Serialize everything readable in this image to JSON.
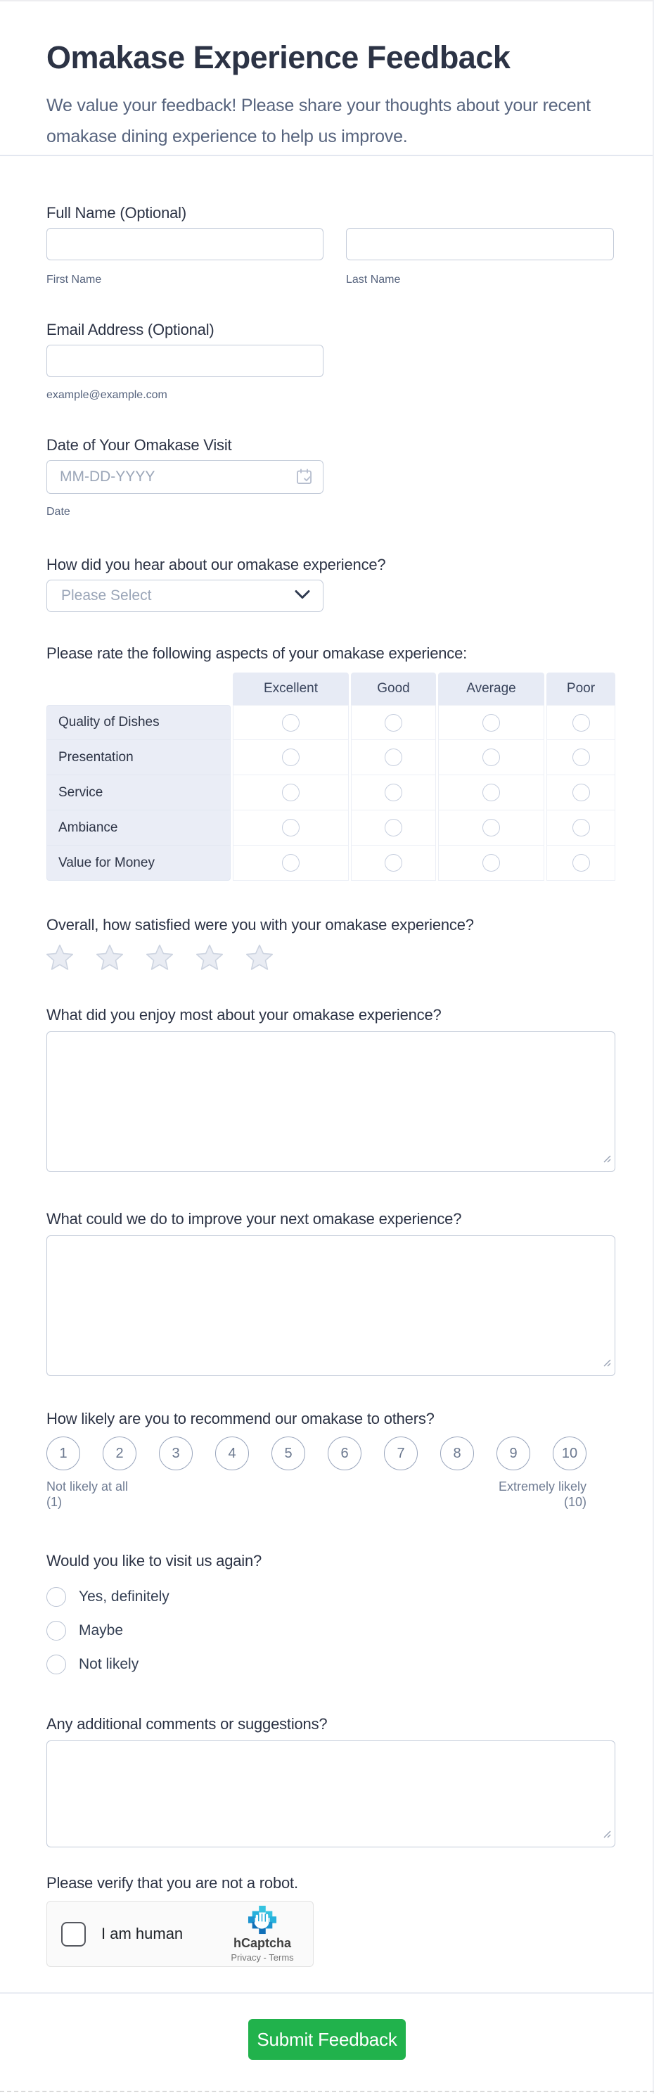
{
  "header": {
    "title": "Omakase Experience Feedback",
    "subtitle": "We value your feedback! Please share your thoughts about your recent omakase dining experience to help us improve."
  },
  "full_name": {
    "label": "Full Name (Optional)",
    "first_value": "",
    "last_value": "",
    "first_sublabel": "First Name",
    "last_sublabel": "Last Name"
  },
  "email": {
    "label": "Email Address (Optional)",
    "value": "",
    "sublabel": "example@example.com"
  },
  "date": {
    "label": "Date of Your Omakase Visit",
    "placeholder": "MM-DD-YYYY",
    "sublabel": "Date"
  },
  "hear_about": {
    "label": "How did you hear about our omakase experience?",
    "placeholder": "Please Select"
  },
  "matrix": {
    "label": "Please rate the following aspects of your omakase experience:",
    "columns": [
      "Excellent",
      "Good",
      "Average",
      "Poor"
    ],
    "rows": [
      "Quality of Dishes",
      "Presentation",
      "Service",
      "Ambiance",
      "Value for Money"
    ]
  },
  "overall": {
    "label": "Overall, how satisfied were you with your omakase experience?",
    "star_count": 5
  },
  "enjoy": {
    "label": "What did you enjoy most about your omakase experience?",
    "value": ""
  },
  "improve": {
    "label": "What could we do to improve your next omakase experience?",
    "value": ""
  },
  "recommend": {
    "label": "How likely are you to recommend our omakase to others?",
    "scale": [
      "1",
      "2",
      "3",
      "4",
      "5",
      "6",
      "7",
      "8",
      "9",
      "10"
    ],
    "min_label": "Not likely at all",
    "min_value": "(1)",
    "max_label": "Extremely likely",
    "max_value": "(10)"
  },
  "visit_again": {
    "label": "Would you like to visit us again?",
    "options": [
      "Yes, definitely",
      "Maybe",
      "Not likely"
    ]
  },
  "comments": {
    "label": "Any additional comments or suggestions?",
    "value": ""
  },
  "captcha": {
    "label": "Please verify that you are not a robot.",
    "checkbox_label": "I am human",
    "brand": "hCaptcha",
    "links": "Privacy - Terms"
  },
  "submit": {
    "label": "Submit Feedback"
  },
  "colors": {
    "accent_green": "#21b24c",
    "label_text": "#2c3345",
    "sublabel_text": "#57647e",
    "input_border": "#c3cbd9",
    "matrix_header_bg": "#e7ebf5",
    "matrix_label_bg": "#eaedf6"
  }
}
